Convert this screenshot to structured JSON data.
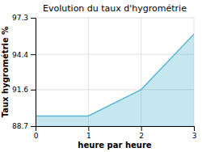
{
  "chart_data": {
    "type": "area",
    "title": "Evolution du taux d'hygrométrie",
    "xlabel": "heure par heure",
    "ylabel": "Taux hygrométrie %",
    "x": [
      0,
      1,
      2,
      3
    ],
    "values": [
      89.5,
      89.5,
      91.6,
      96.0
    ],
    "xlim": [
      0,
      3
    ],
    "ylim": [
      88.7,
      97.3
    ],
    "xticks": [
      0,
      1,
      2,
      3
    ],
    "yticks": [
      88.7,
      91.6,
      94.4,
      97.3
    ],
    "color": "#5bb8d4",
    "grid": true
  }
}
